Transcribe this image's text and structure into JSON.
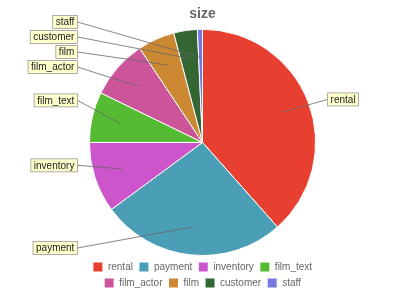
{
  "chart_data": {
    "type": "pie",
    "title": "size",
    "categories": [
      "rental",
      "payment",
      "inventory",
      "film_text",
      "film_actor",
      "film",
      "customer",
      "staff"
    ],
    "values": [
      16000,
      11000,
      4200,
      3000,
      3500,
      2200,
      1400,
      300
    ],
    "colors": [
      "#e84030",
      "#4a9eb5",
      "#cc55cc",
      "#55bb33",
      "#cc5599",
      "#cc8833",
      "#336633",
      "#7777dd"
    ],
    "annotations": [
      "rental",
      "payment",
      "inventory",
      "film_text",
      "film_actor",
      "film",
      "customer",
      "staff"
    ],
    "legend": "bottom"
  }
}
